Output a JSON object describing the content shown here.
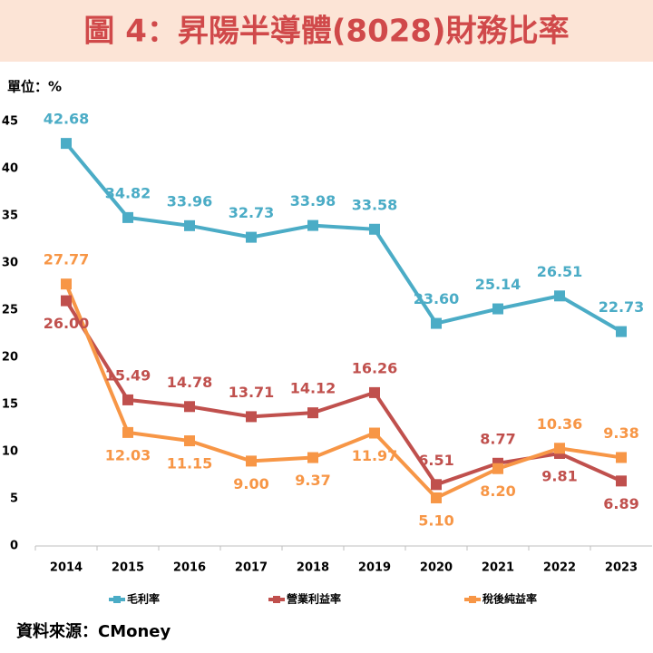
{
  "chart_data": {
    "type": "line",
    "title": "圖 4：昇陽半導體(8028)財務比率",
    "unit_label": "單位：%",
    "source": "資料來源：CMoney",
    "categories": [
      "2014",
      "2015",
      "2016",
      "2017",
      "2018",
      "2019",
      "2020",
      "2021",
      "2022",
      "2023"
    ],
    "series": [
      {
        "name": "毛利率",
        "color": "#4bacc6",
        "values": [
          42.68,
          34.82,
          33.96,
          32.73,
          33.98,
          33.58,
          23.6,
          25.14,
          26.51,
          22.73
        ],
        "value_labels": [
          "42.68",
          "34.82",
          "33.96",
          "32.73",
          "33.98",
          "33.58",
          "23.60",
          "25.14",
          "26.51",
          "22.73"
        ]
      },
      {
        "name": "營業利益率",
        "color": "#c0504d",
        "values": [
          26,
          15.49,
          14.78,
          13.71,
          14.12,
          16.26,
          6.51,
          8.77,
          9.81,
          6.89
        ],
        "value_labels": [
          "26.00",
          "15.49",
          "14.78",
          "13.71",
          "14.12",
          "16.26",
          "6.51",
          "8.77",
          "9.81",
          "6.89"
        ]
      },
      {
        "name": "稅後純益率",
        "color": "#f79646",
        "values": [
          27.77,
          12.03,
          11.15,
          9,
          9.37,
          11.97,
          5.1,
          8.2,
          10.36,
          9.38
        ],
        "value_labels": [
          "27.77",
          "12.03",
          "11.15",
          "9.00",
          "9.37",
          "11.97",
          "5.10",
          "8.20",
          "10.36",
          "9.38"
        ]
      }
    ],
    "ylim": [
      0,
      45
    ],
    "yticks": [
      0,
      5,
      10,
      15,
      20,
      25,
      30,
      35,
      40,
      45
    ],
    "grid": false,
    "legend": "bottom"
  }
}
